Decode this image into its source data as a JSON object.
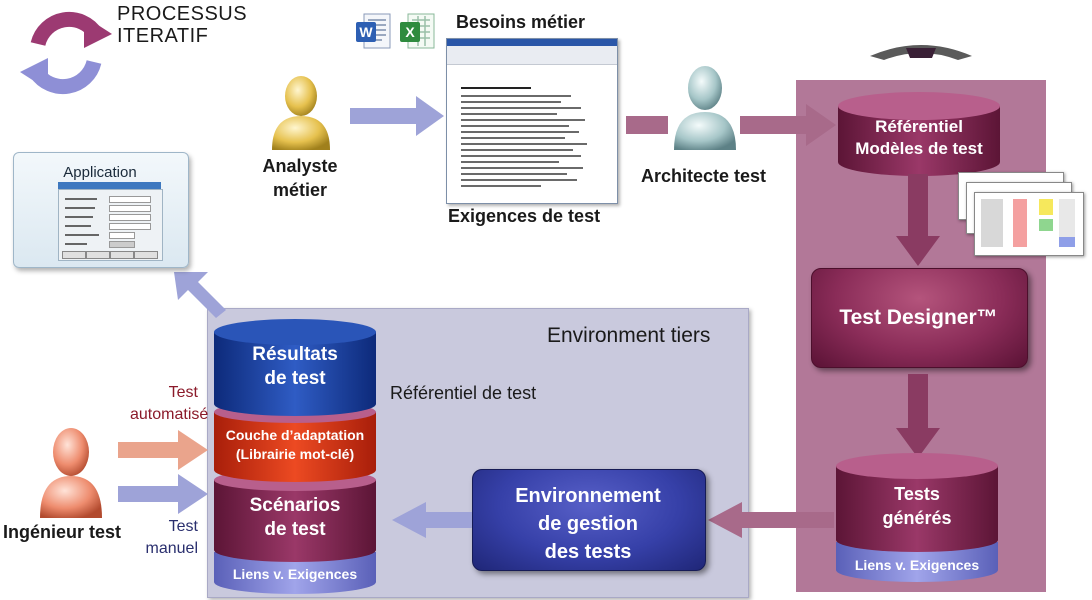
{
  "header": {
    "title_line1": "PROCESSUS",
    "title_line2": "ITERATIF"
  },
  "analyst": {
    "label_line1": "Analyste",
    "label_line2": "métier"
  },
  "besoins": {
    "label": "Besoins métier"
  },
  "exigences": {
    "label": "Exigences de test"
  },
  "architect": {
    "label": "Architecte test"
  },
  "referentiel": {
    "label_line1": "Référentiel",
    "label_line2": "Modèles de test"
  },
  "designer": {
    "label": "Test Designer™"
  },
  "tests_generes": {
    "label_line1": "Tests",
    "label_line2": "générés",
    "liens": "Liens v. Exigences"
  },
  "env_gestion": {
    "line1": "Environnement",
    "line2": "de gestion",
    "line3": "des tests"
  },
  "env_tiers": {
    "label": "Environment tiers",
    "ref_label": "Référentiel de test"
  },
  "stack": {
    "resultats_line1": "Résultats",
    "resultats_line2": "de test",
    "couche_line1": "Couche d’adaptation",
    "couche_line2": "(Librairie mot-clé)",
    "scenarios_line1": "Scénarios",
    "scenarios_line2": "de test",
    "liens": "Liens v. Exigences"
  },
  "engineer": {
    "label": "Ingénieur test",
    "auto_line1": "Test",
    "auto_line2": "automatisé",
    "manual_line1": "Test",
    "manual_line2": "manuel"
  },
  "application": {
    "title": "Application"
  },
  "colors": {
    "accent_purple": "#8a2c58",
    "panel_right": "#b27898",
    "panel_env": "#c9c9dd",
    "arrow_blue": "#9ea3d8",
    "arrow_mauve": "#a86a8a",
    "arrow_salmon": "#eaa48c",
    "auto_text": "#8b1a2a",
    "manual_text": "#2a2f6e"
  },
  "icons": [
    "iterative-cycle-icon",
    "person-icon",
    "word-icon",
    "excel-icon",
    "database-icon"
  ]
}
